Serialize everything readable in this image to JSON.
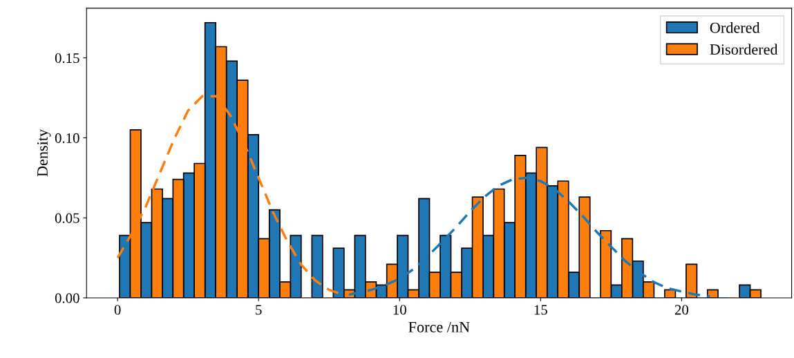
{
  "chart_data": {
    "type": "histogram",
    "xlabel": "Force /nN",
    "ylabel": "Density",
    "bins": [
      0.07,
      0.83,
      1.59,
      2.34,
      3.1,
      3.86,
      4.62,
      5.38,
      6.13,
      6.89,
      7.65,
      8.41,
      9.17,
      9.92,
      10.68,
      11.44,
      12.2,
      12.96,
      13.71,
      14.47,
      15.23,
      15.99,
      16.75,
      17.5,
      18.26,
      19.02,
      19.78,
      20.54,
      21.29,
      22.05,
      22.81
    ],
    "series": [
      {
        "name": "Ordered",
        "color": "#1f77b4",
        "values": [
          0.039,
          0.047,
          0.062,
          0.078,
          0.172,
          0.148,
          0.102,
          0.055,
          0.039,
          0.039,
          0.031,
          0.039,
          0.008,
          0.039,
          0.062,
          0.039,
          0.031,
          0.039,
          0.047,
          0.078,
          0.07,
          0.016,
          0,
          0.008,
          0.023,
          0,
          0,
          0,
          0,
          0.008
        ]
      },
      {
        "name": "Disordered",
        "color": "#ff7f0e",
        "values": [
          0.105,
          0.068,
          0.074,
          0.084,
          0.157,
          0.136,
          0.037,
          0.01,
          0,
          0,
          0.005,
          0.01,
          0.021,
          0.005,
          0.016,
          0.016,
          0.063,
          0.068,
          0.089,
          0.094,
          0.073,
          0.063,
          0.042,
          0.037,
          0.01,
          0.005,
          0.021,
          0.005,
          0,
          0.005
        ]
      },
      {
        "type": "line",
        "color": "#ff7f0e",
        "line_style": "dashed",
        "x": [
          0,
          0.5,
          1,
          1.5,
          2,
          2.5,
          3,
          3.5,
          4,
          4.5,
          5,
          5.5,
          6,
          6.5,
          7,
          7.5,
          8,
          8.3
        ],
        "values": [
          0.025,
          0.04,
          0.057,
          0.078,
          0.099,
          0.117,
          0.126,
          0.126,
          0.114,
          0.096,
          0.075,
          0.054,
          0.036,
          0.021,
          0.011,
          0.005,
          0.002,
          0.001
        ]
      },
      {
        "type": "line",
        "color": "#1f77b4",
        "line_style": "dashed",
        "x": [
          8.2,
          9,
          9.5,
          10,
          10.5,
          11,
          11.5,
          12,
          12.5,
          13,
          13.5,
          14,
          14.5,
          15,
          15.5,
          16,
          16.5,
          17,
          17.5,
          18,
          18.5,
          19,
          19.5,
          20,
          20.5,
          21
        ],
        "values": [
          0.002,
          0.005,
          0.008,
          0.012,
          0.018,
          0.026,
          0.035,
          0.044,
          0.054,
          0.063,
          0.07,
          0.074,
          0.075,
          0.073,
          0.068,
          0.06,
          0.051,
          0.041,
          0.032,
          0.023,
          0.016,
          0.01,
          0.006,
          0.004,
          0.002,
          0.001
        ]
      }
    ],
    "xlim": [
      -1.1,
      23.9
    ],
    "ylim": [
      0,
      0.181
    ],
    "xticks": [
      0,
      5,
      10,
      15,
      20
    ],
    "yticks": [
      {
        "value": 0,
        "label": "0.00"
      },
      {
        "value": 0.05,
        "label": "0.05"
      },
      {
        "value": 0.1,
        "label": "0.10"
      },
      {
        "value": 0.15,
        "label": "0.15"
      }
    ],
    "legend": "top right",
    "grid": false
  }
}
